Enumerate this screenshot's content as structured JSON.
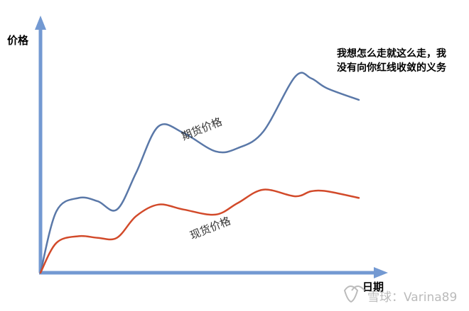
{
  "chart_data": {
    "type": "line",
    "ylabel": "价格",
    "xlabel": "日期",
    "annotation": {
      "line1": "我想怎么走就这么走，我",
      "line2": "没有向你红线收敛的义务"
    },
    "x": [
      0,
      5,
      12,
      18,
      24,
      30,
      37,
      45,
      55,
      62,
      70,
      80,
      85,
      90,
      100
    ],
    "series": [
      {
        "name": "期货价格",
        "color": "#5a78a8",
        "values": [
          0,
          37,
          45,
          43,
          38,
          60,
          88,
          84,
          73,
          75,
          85,
          118,
          117,
          111,
          104
        ]
      },
      {
        "name": "现货价格",
        "color": "#d24a2a",
        "values": [
          0,
          18,
          22,
          21,
          21,
          34,
          41,
          38,
          35,
          42,
          50,
          46,
          49,
          49,
          45
        ]
      }
    ],
    "xlim": [
      0,
      100
    ],
    "ylim": [
      0,
      130
    ],
    "axis_color": "#7399d2"
  },
  "watermark": {
    "icon": "snowball-icon",
    "text": "雪球：Varina89"
  }
}
